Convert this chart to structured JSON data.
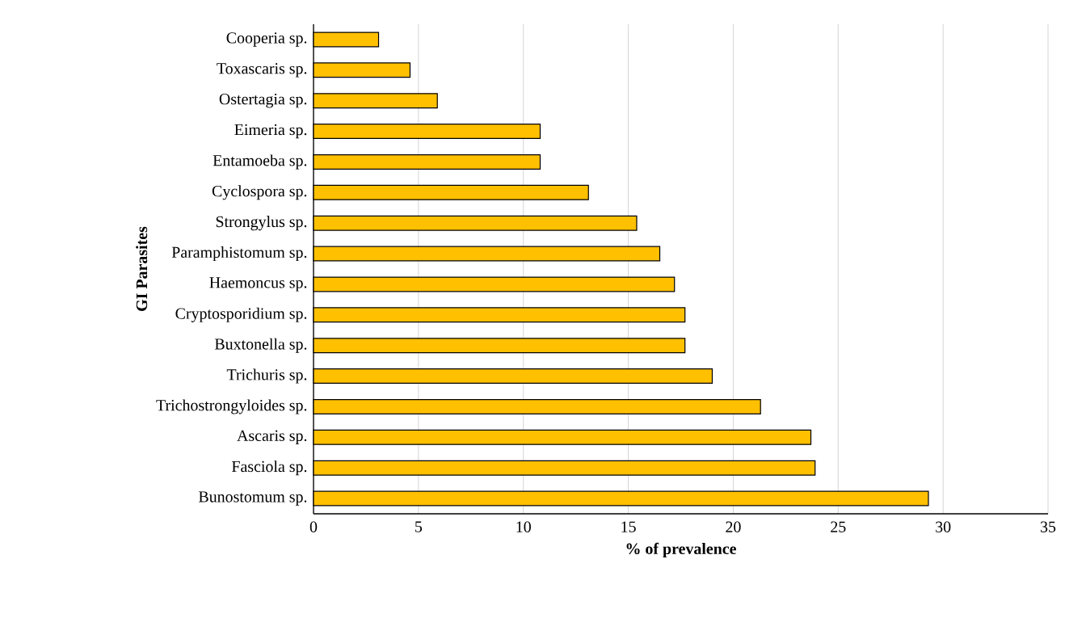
{
  "chart_data": {
    "type": "bar",
    "orientation": "horizontal",
    "categories": [
      "Cooperia sp.",
      "Toxascaris sp.",
      "Ostertagia sp.",
      "Eimeria sp.",
      "Entamoeba sp.",
      "Cyclospora sp.",
      "Strongylus sp.",
      "Paramphistomum sp.",
      "Haemoncus sp.",
      "Cryptosporidium sp.",
      "Buxtonella sp.",
      "Trichuris sp.",
      "Trichostrongyloides sp.",
      "Ascaris sp.",
      "Fasciola sp.",
      "Bunostomum sp."
    ],
    "values": [
      3.1,
      4.6,
      5.9,
      10.8,
      10.8,
      13.1,
      15.4,
      16.5,
      17.2,
      17.7,
      17.7,
      19.0,
      21.3,
      23.7,
      23.9,
      29.3
    ],
    "color": "#ffc000",
    "xlim": [
      0,
      35
    ],
    "xticks": [
      0,
      5,
      10,
      15,
      20,
      25,
      30,
      35
    ],
    "grid": "x",
    "xlabel": "% of prevalence",
    "ylabel": "GI Parasites"
  }
}
